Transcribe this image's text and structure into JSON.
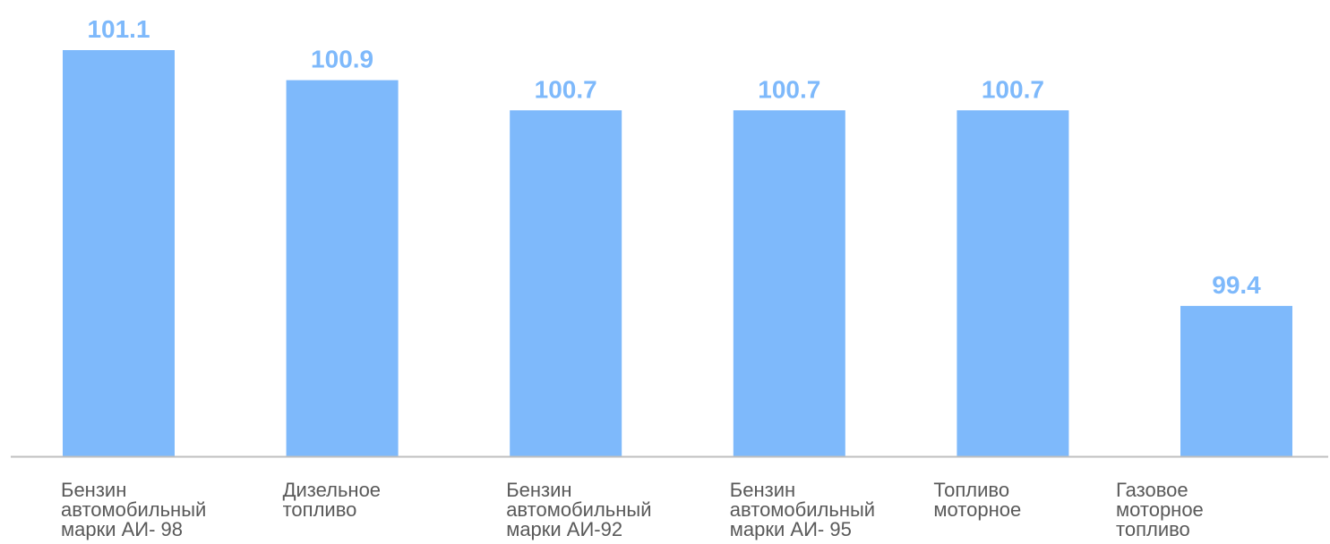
{
  "chart_data": {
    "type": "bar",
    "categories": [
      "Бензин\nавтомобильный\nмарки АИ- 98",
      "Дизельное\nтопливо",
      "Бензин\nавтомобильный\nмарки АИ-92",
      "Бензин\nавтомобильный\nмарки АИ- 95",
      "Топливо\nмоторное",
      "Газовое\nмоторное\nтопливо"
    ],
    "values": [
      101.1,
      100.9,
      100.7,
      100.7,
      100.7,
      99.4
    ],
    "value_labels": [
      "101.1",
      "100.9",
      "100.7",
      "100.7",
      "100.7",
      "99.4"
    ],
    "title": "",
    "xlabel": "",
    "ylabel": "",
    "ylim": [
      98.4,
      101.1
    ],
    "grid": false,
    "legend": "none",
    "colors": {
      "bar": "#7EB9FB",
      "value_label": "#7EB9FB",
      "axis": "#BFBFBF",
      "category_label": "#595959"
    }
  }
}
